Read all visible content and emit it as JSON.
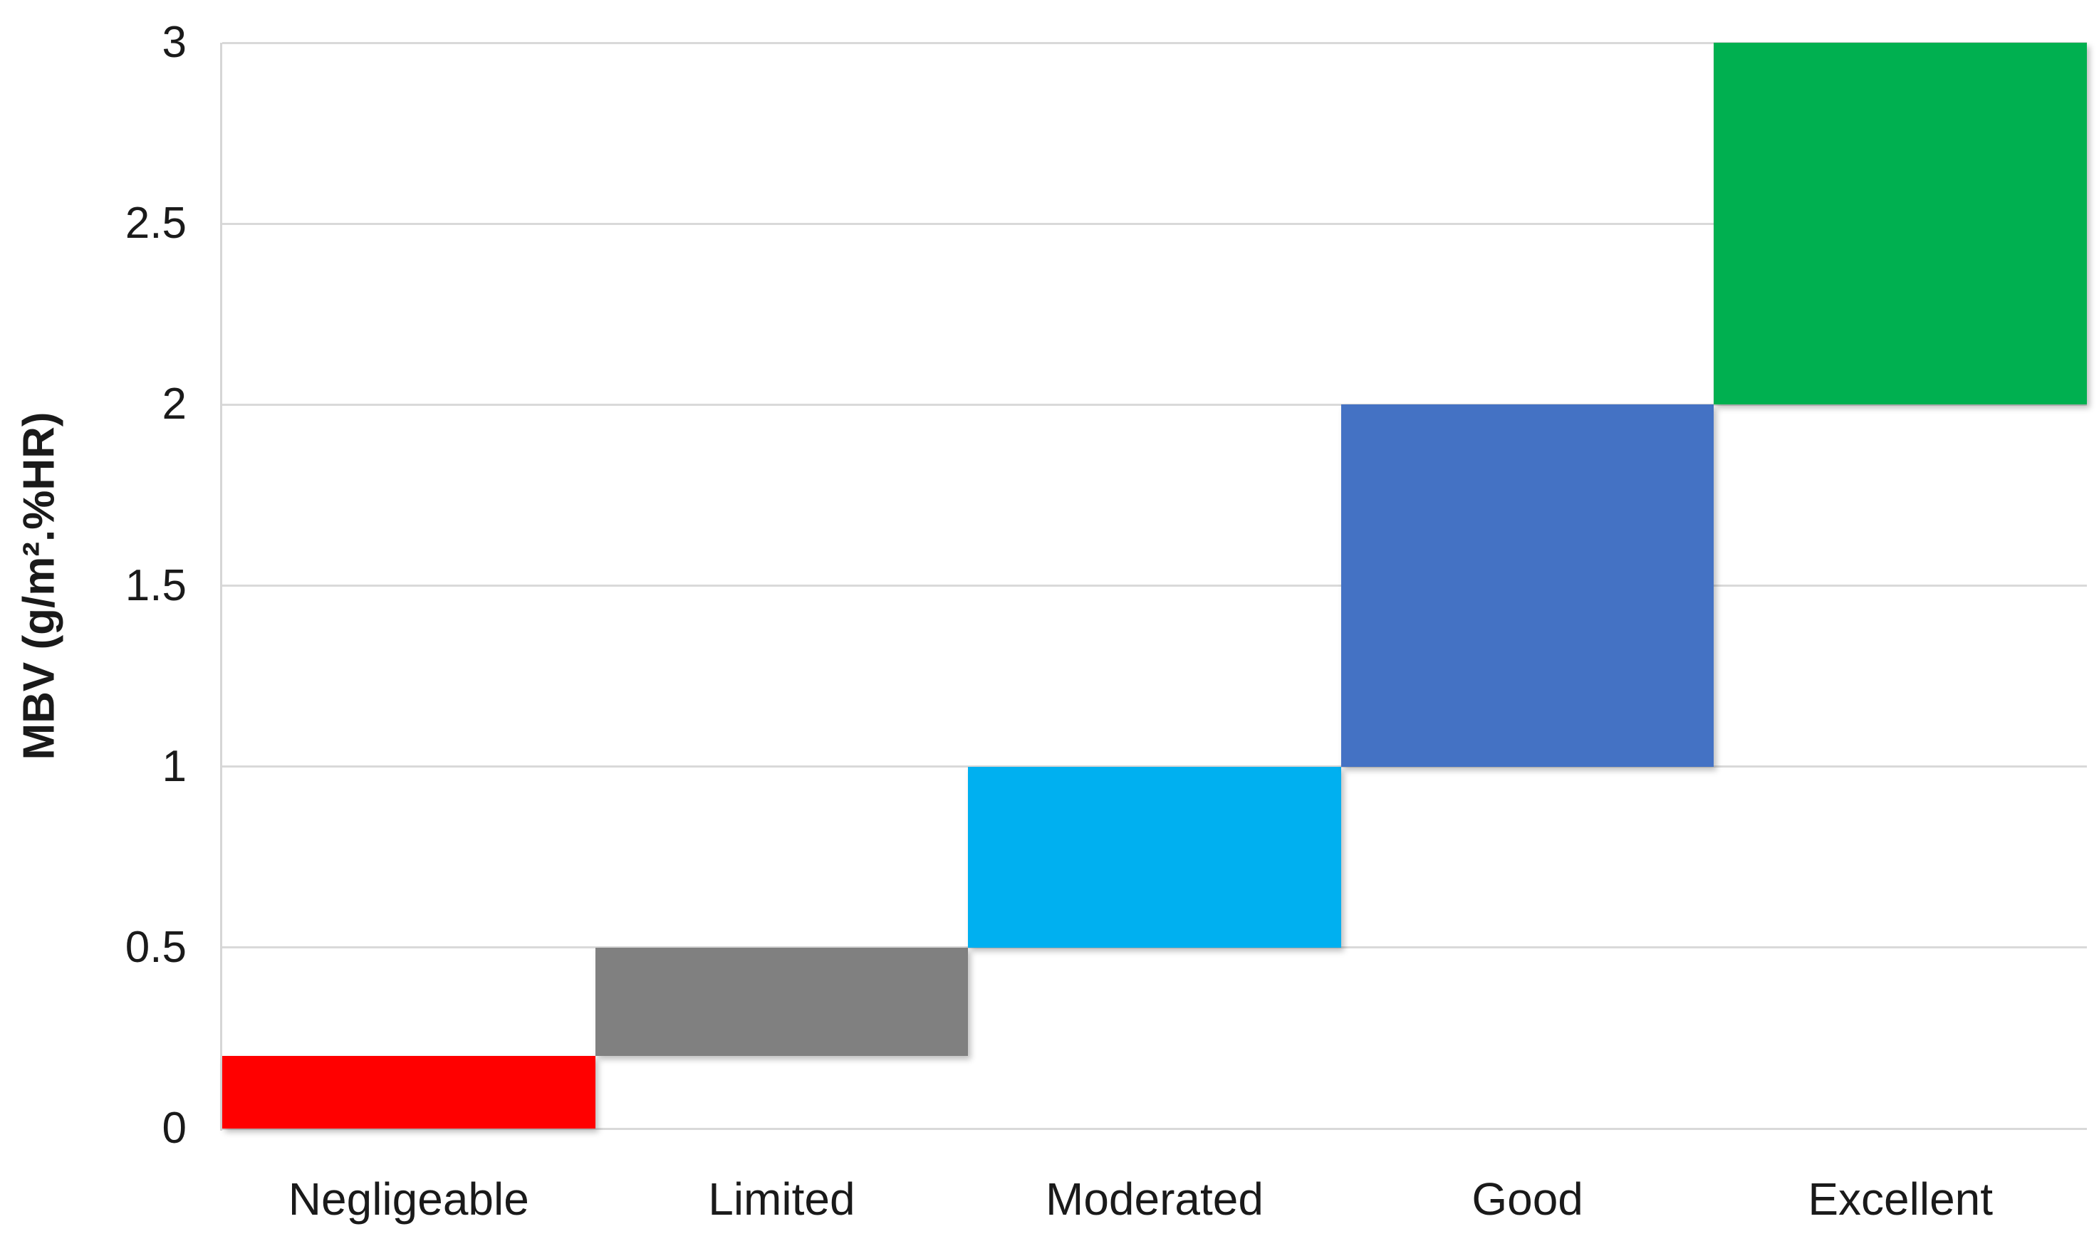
{
  "chart_data": {
    "type": "bar",
    "subtype": "range-column",
    "title": "",
    "xlabel": "",
    "ylabel": "MBV (g/m².%HR)",
    "categories": [
      "Negligeable",
      "Limited",
      "Moderated",
      "Good",
      "Excellent"
    ],
    "series": [
      {
        "name": "MBV classification range",
        "ranges": [
          {
            "category": "Negligeable",
            "from": 0,
            "to": 0.2
          },
          {
            "category": "Limited",
            "from": 0.2,
            "to": 0.5
          },
          {
            "category": "Moderated",
            "from": 0.5,
            "to": 1
          },
          {
            "category": "Good",
            "from": 1,
            "to": 2
          },
          {
            "category": "Excellent",
            "from": 2,
            "to": 3
          }
        ]
      }
    ],
    "bar_colors": [
      "#ff0000",
      "#808080",
      "#00b0f0",
      "#4472c4",
      "#00b050"
    ],
    "ylim": [
      0,
      3
    ],
    "yticks": [
      0,
      0.5,
      1,
      1.5,
      2,
      2.5,
      3
    ],
    "ytick_labels": [
      "0",
      "0.5",
      "1",
      "1.5",
      "2",
      "2.5",
      "3"
    ],
    "grid": "horizontal",
    "gridline_color": "#d9d9d9",
    "axis_line_color": "#d6d6d6",
    "legend_position": "none",
    "background_color": "#ffffff",
    "bar_gap": 0
  }
}
